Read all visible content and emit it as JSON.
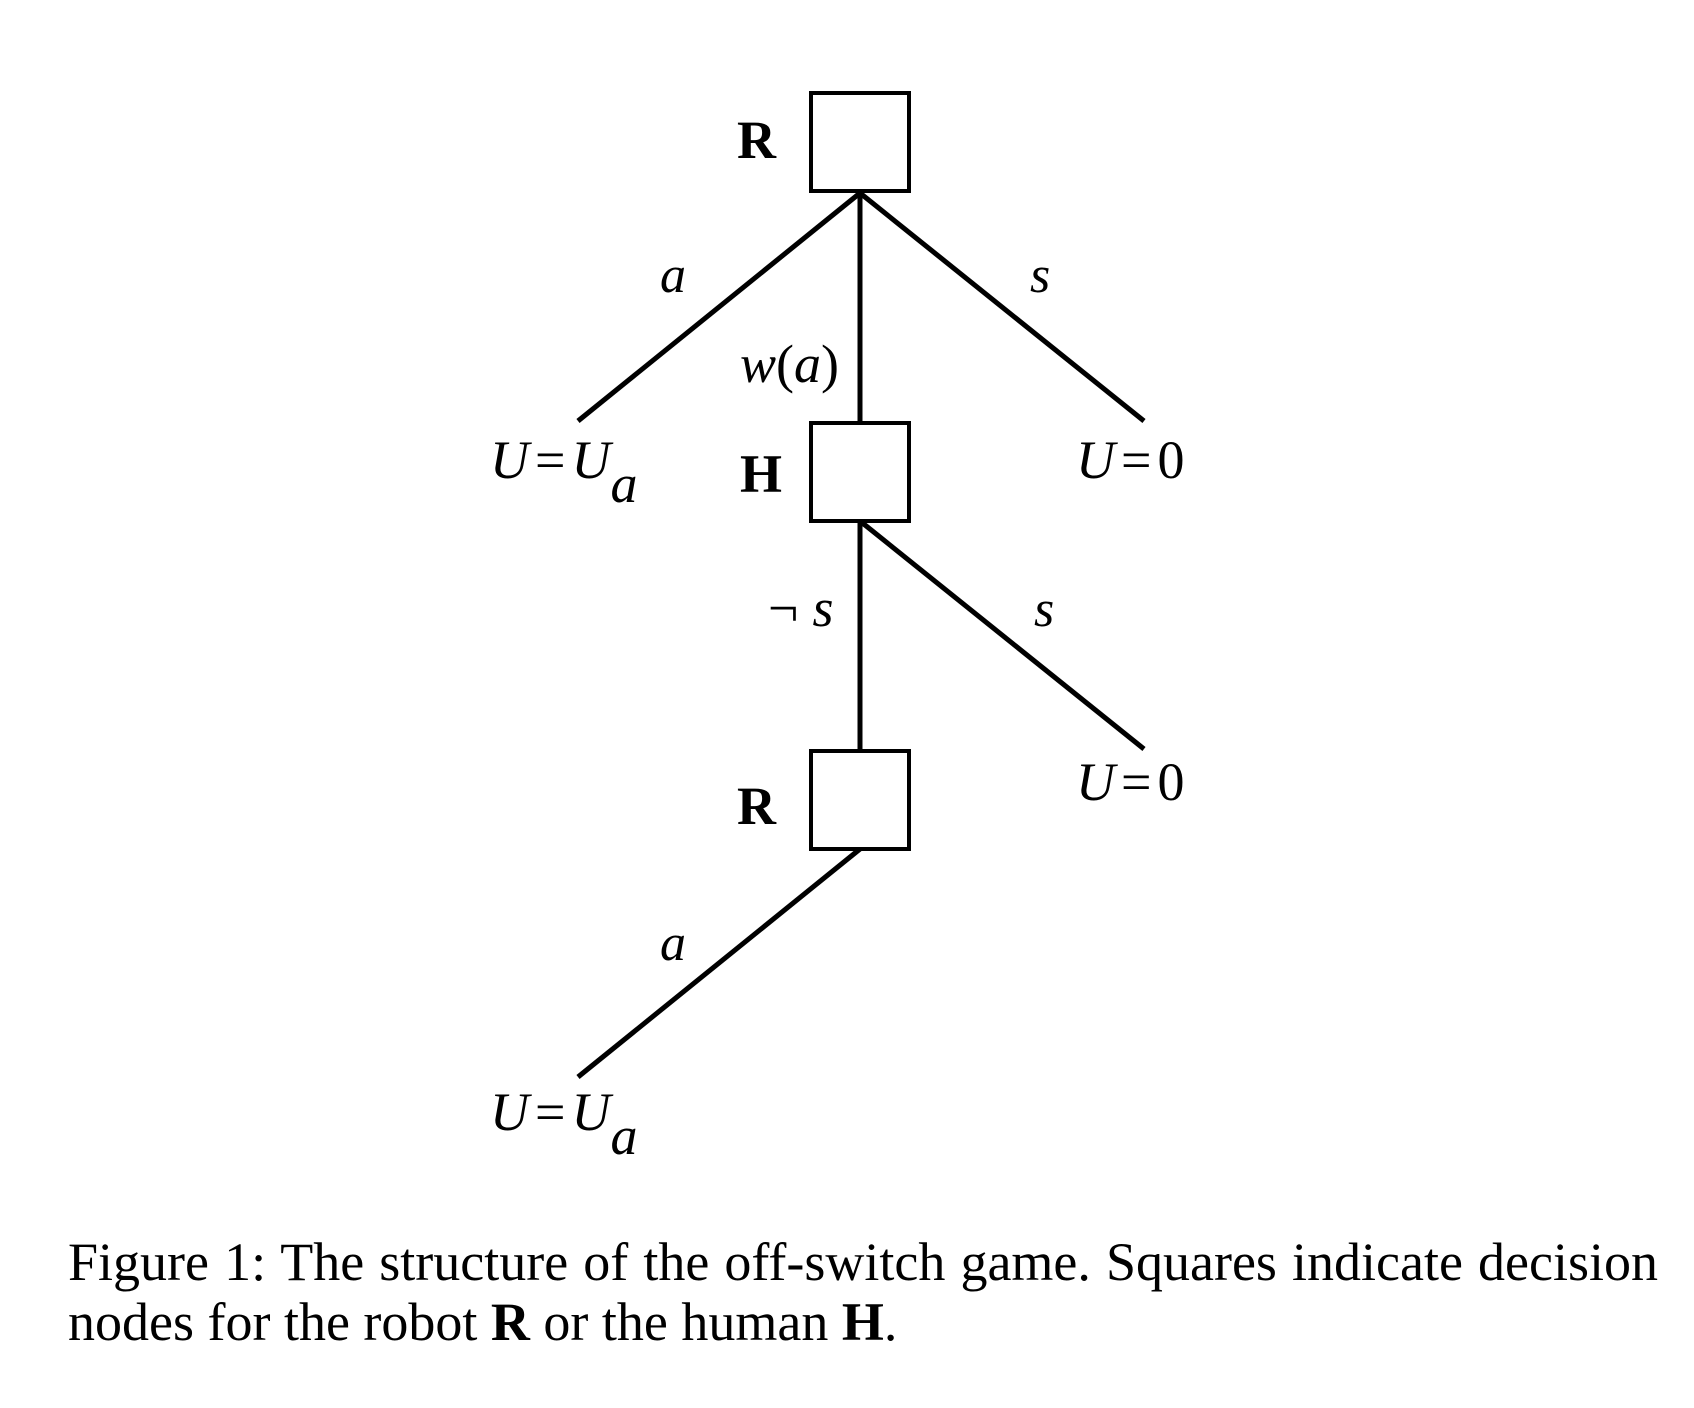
{
  "diagram": {
    "nodes": [
      {
        "id": "r_top",
        "label": "R"
      },
      {
        "id": "h_mid",
        "label": "H"
      },
      {
        "id": "r_bottom",
        "label": "R"
      }
    ],
    "edges": [
      {
        "from": "r_top",
        "label": "a"
      },
      {
        "from": "r_top",
        "to": "h_mid",
        "label_var": "w",
        "label_arg": "a"
      },
      {
        "from": "r_top",
        "label": "s"
      },
      {
        "from": "h_mid",
        "to": "r_bottom",
        "label_neg": "¬",
        "label_var": "s"
      },
      {
        "from": "h_mid",
        "label": "s"
      },
      {
        "from": "r_bottom",
        "label": "a"
      }
    ],
    "outcomes": [
      {
        "id": "u_ua_top",
        "lhs": "U",
        "eq": "=",
        "rhs": "U",
        "sub": "a"
      },
      {
        "id": "u_zero_top",
        "lhs": "U",
        "eq": "=",
        "rhs": "0"
      },
      {
        "id": "u_zero_mid",
        "lhs": "U",
        "eq": "=",
        "rhs": "0"
      },
      {
        "id": "u_ua_bottom",
        "lhs": "U",
        "eq": "=",
        "rhs": "U",
        "sub": "a"
      }
    ]
  },
  "caption": {
    "prefix": "Figure 1:",
    "text_1": "The structure of the off-switch game. Squares indicate decision nodes for the robot",
    "robot": "R",
    "text_2": "or the human",
    "human": "H",
    "end": "."
  }
}
